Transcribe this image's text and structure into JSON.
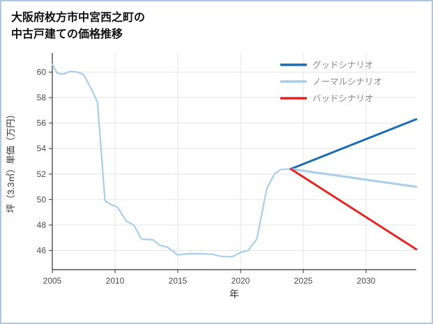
{
  "page": {
    "title_line1": "大阪府枚方市中宮西之町の",
    "title_line2": "中古戸建ての価格推移"
  },
  "chart_data": {
    "type": "line",
    "title": "大阪府枚方市中宮西之町の中古戸建ての価格推移",
    "xlabel": "年",
    "ylabel": "坪（3.3㎡）単価（万円）",
    "xlim": [
      2005,
      2034
    ],
    "ylim": [
      44.5,
      61.5
    ],
    "xticks": [
      2005,
      2010,
      2015,
      2020,
      2025,
      2030
    ],
    "yticks": [
      46,
      48,
      50,
      52,
      54,
      56,
      58,
      60
    ],
    "grid": true,
    "legend_position": "upper right",
    "colors": {
      "good": "#1a6db3",
      "normal": "#a8cee9",
      "bad": "#e52421",
      "grid": "#e4e4e4",
      "axis": "#333333",
      "tick": "#4a4a4a",
      "label": "#333333",
      "legend_text": "#8a8a8a",
      "border": "#abc8e6"
    },
    "legend": [
      {
        "label": "グッドシナリオ",
        "color_key": "good"
      },
      {
        "label": "ノーマルシナリオ",
        "color_key": "normal"
      },
      {
        "label": "バッドシナリオ",
        "color_key": "bad"
      }
    ],
    "series": [
      {
        "key": "history",
        "color_key": "normal",
        "width": 2.2,
        "x": [
          2005,
          2005.4,
          2005.9,
          2006.4,
          2007.0,
          2007.5,
          2008.3,
          2008.6,
          2009.2,
          2009.7,
          2010.2,
          2010.9,
          2011.5,
          2012.1,
          2013.0,
          2013.6,
          2014.2,
          2015.0,
          2015.8,
          2017.0,
          2017.8,
          2018.4,
          2019.3,
          2020.0,
          2020.6,
          2021.3,
          2022.1,
          2022.7,
          2023.2,
          2024.0
        ],
        "y": [
          60.6,
          59.9,
          59.85,
          60.05,
          60.0,
          59.8,
          58.3,
          57.6,
          49.9,
          49.6,
          49.4,
          48.3,
          48.0,
          46.9,
          46.85,
          46.4,
          46.25,
          45.65,
          45.75,
          45.75,
          45.7,
          45.55,
          45.5,
          45.85,
          46.0,
          46.9,
          50.9,
          52.0,
          52.35,
          52.4
        ]
      },
      {
        "key": "good-scenario",
        "color_key": "good",
        "width": 3,
        "x": [
          2024,
          2034
        ],
        "y": [
          52.4,
          56.3
        ]
      },
      {
        "key": "normal-scenario",
        "color_key": "normal",
        "width": 3,
        "x": [
          2024,
          2034
        ],
        "y": [
          52.4,
          51.0
        ]
      },
      {
        "key": "bad-scenario",
        "color_key": "bad",
        "width": 3,
        "x": [
          2024,
          2034
        ],
        "y": [
          52.4,
          46.1
        ]
      }
    ]
  }
}
